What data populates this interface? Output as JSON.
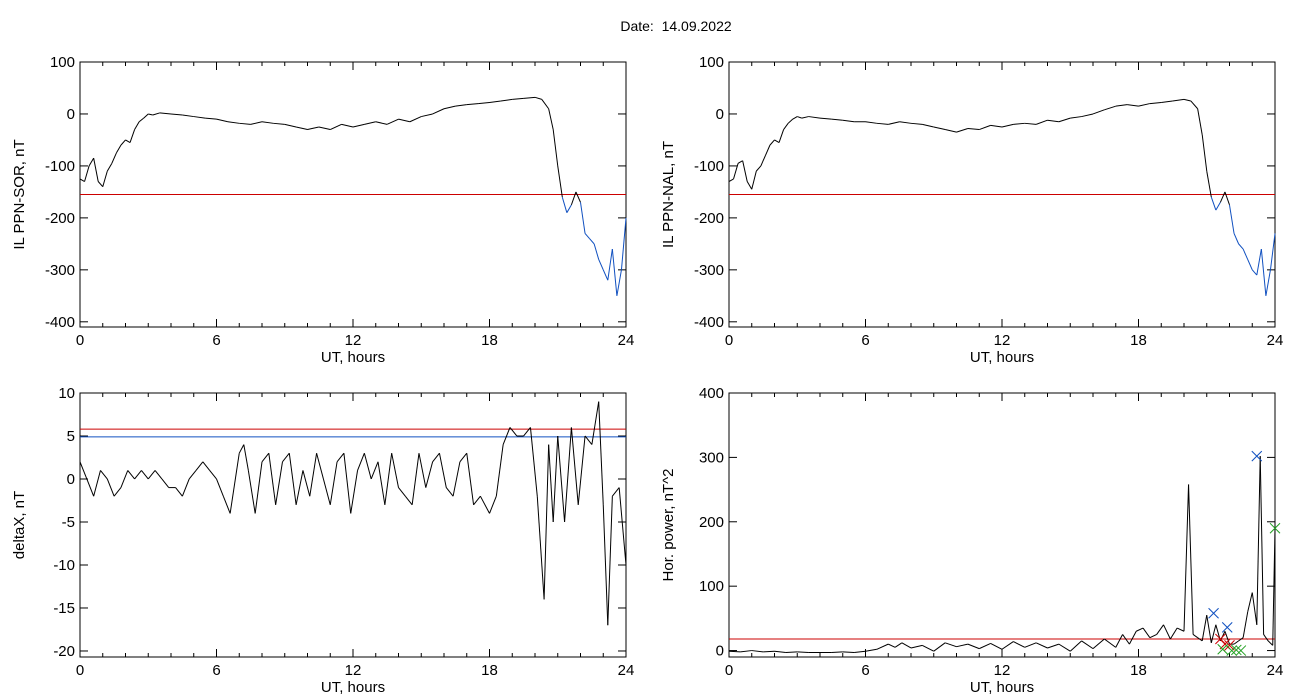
{
  "title": "Date:  14.09.2022",
  "colors": {
    "threshold": "#cc0000",
    "below": "#1050c0",
    "trace": "#000000",
    "blue_line": "#1050c0",
    "marker_blue": "#1050c0",
    "marker_red": "#cc0000",
    "marker_green": "#20a020"
  },
  "chart_data": [
    {
      "type": "line",
      "xlabel": "UT, hours",
      "ylabel": "IL PPN-SOR, nT",
      "xlim": [
        0,
        24
      ],
      "ylim": [
        -410,
        100
      ],
      "xticks": [
        0,
        6,
        12,
        18,
        24
      ],
      "yticks": [
        100,
        0,
        -100,
        -200,
        -300,
        -400
      ],
      "threshold": -155,
      "series": [
        {
          "x": [
            0,
            0.2,
            0.4,
            0.6,
            0.8,
            1.0,
            1.2,
            1.4,
            1.6,
            1.8,
            2.0,
            2.2,
            2.4,
            2.6,
            2.8,
            3.0,
            3.2,
            3.5,
            4,
            4.5,
            5,
            5.5,
            6,
            6.5,
            7,
            7.5,
            8,
            8.5,
            9,
            9.5,
            10,
            10.5,
            11,
            11.5,
            12,
            12.5,
            13,
            13.5,
            14,
            14.5,
            15,
            15.5,
            16,
            16.5,
            17,
            17.5,
            18,
            18.5,
            19,
            19.5,
            20,
            20.3,
            20.6,
            20.8,
            21.0,
            21.2,
            21.4,
            21.6,
            21.8,
            22.0,
            22.2,
            22.4,
            22.6,
            22.8,
            23.0,
            23.2,
            23.4,
            23.6,
            23.8,
            24
          ],
          "y": [
            -125,
            -130,
            -100,
            -85,
            -130,
            -140,
            -110,
            -95,
            -75,
            -60,
            -50,
            -55,
            -30,
            -15,
            -8,
            0,
            -2,
            2,
            0,
            -2,
            -5,
            -8,
            -10,
            -15,
            -18,
            -20,
            -15,
            -18,
            -20,
            -25,
            -30,
            -25,
            -30,
            -20,
            -25,
            -20,
            -15,
            -20,
            -10,
            -15,
            -5,
            0,
            10,
            15,
            18,
            20,
            22,
            25,
            28,
            30,
            32,
            28,
            10,
            -30,
            -100,
            -160,
            -190,
            -175,
            -150,
            -170,
            -230,
            -240,
            -250,
            -280,
            -300,
            -320,
            -260,
            -350,
            -300,
            -200
          ]
        }
      ]
    },
    {
      "type": "line",
      "xlabel": "UT, hours",
      "ylabel": "IL PPN-NAL, nT",
      "xlim": [
        0,
        24
      ],
      "ylim": [
        -410,
        100
      ],
      "xticks": [
        0,
        6,
        12,
        18,
        24
      ],
      "yticks": [
        100,
        0,
        -100,
        -200,
        -300,
        -400
      ],
      "threshold": -155,
      "series": [
        {
          "x": [
            0,
            0.2,
            0.4,
            0.6,
            0.8,
            1.0,
            1.2,
            1.4,
            1.6,
            1.8,
            2.0,
            2.2,
            2.4,
            2.6,
            2.8,
            3.0,
            3.2,
            3.5,
            4,
            4.5,
            5,
            5.5,
            6,
            6.5,
            7,
            7.5,
            8,
            8.5,
            9,
            9.5,
            10,
            10.5,
            11,
            11.5,
            12,
            12.5,
            13,
            13.5,
            14,
            14.5,
            15,
            15.5,
            16,
            16.5,
            17,
            17.5,
            18,
            18.5,
            19,
            19.5,
            20,
            20.3,
            20.6,
            20.8,
            21.0,
            21.2,
            21.4,
            21.6,
            21.8,
            22.0,
            22.2,
            22.4,
            22.6,
            22.8,
            23.0,
            23.2,
            23.4,
            23.6,
            23.8,
            24
          ],
          "y": [
            -130,
            -125,
            -95,
            -90,
            -130,
            -145,
            -110,
            -100,
            -80,
            -60,
            -50,
            -55,
            -30,
            -18,
            -10,
            -5,
            -8,
            -5,
            -8,
            -10,
            -12,
            -15,
            -15,
            -18,
            -20,
            -15,
            -18,
            -20,
            -25,
            -30,
            -35,
            -28,
            -30,
            -22,
            -25,
            -20,
            -18,
            -20,
            -12,
            -15,
            -8,
            -5,
            0,
            8,
            15,
            18,
            15,
            20,
            22,
            25,
            28,
            25,
            10,
            -40,
            -110,
            -160,
            -185,
            -170,
            -150,
            -175,
            -230,
            -250,
            -260,
            -280,
            -300,
            -310,
            -260,
            -350,
            -300,
            -230
          ]
        }
      ]
    },
    {
      "type": "line",
      "xlabel": "UT, hours",
      "ylabel": "deltaX, nT",
      "xlim": [
        0,
        24
      ],
      "ylim": [
        -20.7,
        10
      ],
      "xticks": [
        0,
        6,
        12,
        18,
        24
      ],
      "yticks": [
        10,
        5,
        0,
        -5,
        -10,
        -15,
        -20
      ],
      "red_line": 5.8,
      "blue_line": 4.9,
      "series": [
        {
          "x": [
            0,
            0.3,
            0.6,
            0.9,
            1.2,
            1.5,
            1.8,
            2.1,
            2.4,
            2.7,
            3.0,
            3.3,
            3.6,
            3.9,
            4.2,
            4.5,
            4.8,
            5.1,
            5.4,
            5.7,
            6.0,
            6.3,
            6.6,
            7.0,
            7.2,
            7.4,
            7.7,
            8.0,
            8.3,
            8.6,
            8.9,
            9.2,
            9.5,
            9.8,
            10.1,
            10.4,
            10.7,
            11.0,
            11.3,
            11.6,
            11.9,
            12.2,
            12.5,
            12.8,
            13.1,
            13.4,
            13.7,
            14.0,
            14.3,
            14.6,
            14.9,
            15.2,
            15.5,
            15.8,
            16.1,
            16.4,
            16.7,
            17.0,
            17.3,
            17.6,
            18.0,
            18.3,
            18.6,
            18.9,
            19.2,
            19.5,
            19.8,
            20.1,
            20.4,
            20.6,
            20.8,
            21.0,
            21.3,
            21.6,
            21.9,
            22.2,
            22.5,
            22.8,
            23.0,
            23.2,
            23.4,
            23.7,
            24.0
          ],
          "y": [
            2,
            0,
            -2,
            1,
            0,
            -2,
            -1,
            1,
            0,
            1,
            0,
            1,
            0,
            -1,
            -1,
            -2,
            0,
            1,
            2,
            1,
            0,
            -2,
            -4,
            3,
            4,
            1,
            -4,
            2,
            3,
            -3,
            2,
            3,
            -3,
            1,
            -2,
            3,
            0,
            -3,
            2,
            3,
            -4,
            1,
            3,
            0,
            2,
            -3,
            3,
            -1,
            -2,
            -3,
            3,
            -1,
            2,
            3,
            -1,
            -2,
            2,
            3,
            -3,
            -2,
            -4,
            -2,
            4,
            6,
            5,
            5,
            6,
            -2,
            -14,
            4,
            -5,
            5,
            -5,
            6,
            -3,
            5,
            4,
            9,
            -3,
            -17,
            -2,
            -1,
            -10
          ]
        }
      ]
    },
    {
      "type": "line",
      "xlabel": "UT, hours",
      "ylabel": "Hor. power, nT^2",
      "xlim": [
        0,
        24
      ],
      "ylim": [
        -10,
        400
      ],
      "xticks": [
        0,
        6,
        12,
        18,
        24
      ],
      "yticks": [
        400,
        300,
        200,
        100,
        0
      ],
      "threshold": 18,
      "series": [
        {
          "x": [
            0,
            0.5,
            1,
            1.5,
            2,
            2.5,
            3,
            3.5,
            4,
            4.5,
            5,
            5.5,
            6,
            6.5,
            7,
            7.3,
            7.6,
            8,
            8.5,
            9,
            9.5,
            10,
            10.5,
            11,
            11.5,
            12,
            12.5,
            13,
            13.5,
            14,
            14.5,
            15,
            15.5,
            16,
            16.5,
            17,
            17.3,
            17.6,
            17.9,
            18.2,
            18.5,
            18.8,
            19.1,
            19.4,
            19.7,
            20.0,
            20.2,
            20.4,
            20.6,
            20.8,
            21.0,
            21.2,
            21.4,
            21.6,
            21.8,
            22.0,
            22.2,
            22.4,
            22.6,
            22.8,
            23.0,
            23.2,
            23.35,
            23.5,
            23.7,
            23.9,
            24.0
          ],
          "y": [
            -1,
            -2,
            0,
            -2,
            -1,
            -3,
            -2,
            -3,
            -3,
            -3,
            -2,
            -3,
            -1,
            2,
            10,
            5,
            12,
            4,
            8,
            -1,
            12,
            6,
            10,
            3,
            11,
            2,
            14,
            5,
            12,
            4,
            10,
            -1,
            15,
            3,
            18,
            5,
            25,
            10,
            30,
            35,
            20,
            25,
            40,
            18,
            35,
            30,
            258,
            25,
            20,
            15,
            55,
            12,
            40,
            15,
            30,
            10,
            10,
            15,
            20,
            60,
            90,
            40,
            302,
            25,
            15,
            8,
            190
          ]
        }
      ],
      "markers": [
        {
          "x": 21.3,
          "y": 58,
          "kind": "x",
          "color": "blue"
        },
        {
          "x": 21.9,
          "y": 36,
          "kind": "x",
          "color": "blue"
        },
        {
          "x": 23.2,
          "y": 302,
          "kind": "x",
          "color": "blue"
        },
        {
          "x": 21.6,
          "y": 18,
          "kind": "x",
          "color": "red"
        },
        {
          "x": 21.8,
          "y": 10,
          "kind": "x",
          "color": "red"
        },
        {
          "x": 22.0,
          "y": 8,
          "kind": "x",
          "color": "red"
        },
        {
          "x": 21.7,
          "y": 2,
          "kind": "x",
          "color": "green"
        },
        {
          "x": 22.1,
          "y": 0,
          "kind": "x",
          "color": "green"
        },
        {
          "x": 22.3,
          "y": 1,
          "kind": "x",
          "color": "green"
        },
        {
          "x": 22.5,
          "y": 0,
          "kind": "x",
          "color": "green"
        },
        {
          "x": 24.0,
          "y": 190,
          "kind": "x",
          "color": "green"
        }
      ]
    }
  ]
}
